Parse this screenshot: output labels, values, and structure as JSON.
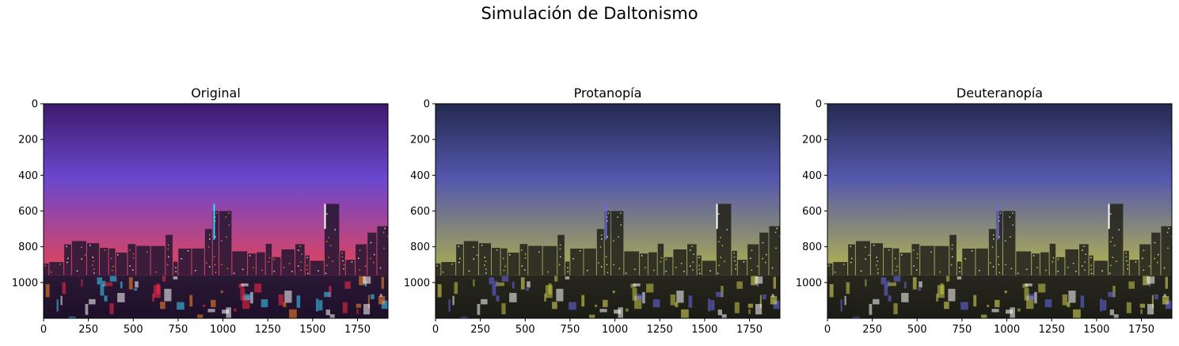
{
  "figure": {
    "title": "Simulación de Daltonismo"
  },
  "chart_data": [
    {
      "type": "image",
      "title": "Original",
      "xlim": [
        0,
        1920
      ],
      "ylim": [
        1200,
        0
      ],
      "xticks": [
        0,
        250,
        500,
        750,
        1000,
        1250,
        1500,
        1750
      ],
      "yticks": [
        0,
        200,
        400,
        600,
        800,
        1000
      ],
      "palette": {
        "sky_top": "#3d1a6b",
        "sky_mid": "#6a48cf",
        "horizon": "#d2446a",
        "city": "#2a1835",
        "water": "#1e0f2a",
        "lights": [
          "#ff8a2a",
          "#ffffff",
          "#3ad7ff",
          "#ff2a4a"
        ]
      }
    },
    {
      "type": "image",
      "title": "Protanopía",
      "xlim": [
        0,
        1920
      ],
      "ylim": [
        1200,
        0
      ],
      "xticks": [
        0,
        250,
        500,
        750,
        1000,
        1250,
        1500,
        1750
      ],
      "yticks": [
        0,
        200,
        400,
        600,
        800,
        1000
      ],
      "palette": {
        "sky_top": "#24294f",
        "sky_mid": "#5457ad",
        "horizon": "#9ea05e",
        "city": "#26261e",
        "water": "#1c1c16",
        "lights": [
          "#e2e05a",
          "#ffffff",
          "#6a6af0",
          "#c8c84a"
        ]
      }
    },
    {
      "type": "image",
      "title": "Deuteranopía",
      "xlim": [
        0,
        1920
      ],
      "ylim": [
        1200,
        0
      ],
      "xticks": [
        0,
        250,
        500,
        750,
        1000,
        1250,
        1500,
        1750
      ],
      "yticks": [
        0,
        200,
        400,
        600,
        800,
        1000
      ],
      "palette": {
        "sky_top": "#262a50",
        "sky_mid": "#5558ac",
        "horizon": "#a4a65c",
        "city": "#27271f",
        "water": "#1c1c16",
        "lights": [
          "#e6e45c",
          "#ffffff",
          "#6a6af0",
          "#cccc4c"
        ]
      }
    }
  ]
}
